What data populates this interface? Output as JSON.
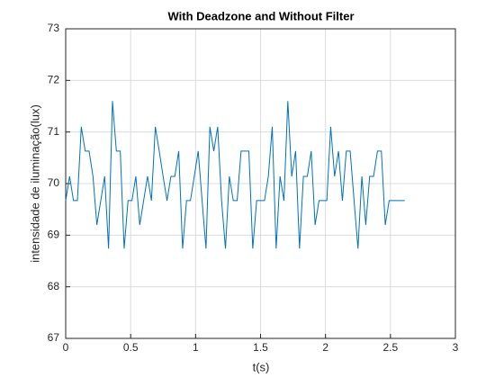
{
  "chart_data": {
    "type": "line",
    "title": "With Deadzone and Without Filter",
    "xlabel": "t(s)",
    "ylabel": "intensidade de iluminação(lux)",
    "x": [
      0,
      0.03,
      0.06,
      0.09,
      0.12,
      0.15,
      0.18,
      0.21,
      0.24,
      0.27,
      0.3,
      0.33,
      0.36,
      0.39,
      0.42,
      0.45,
      0.48,
      0.51,
      0.54,
      0.57,
      0.6,
      0.63,
      0.66,
      0.69,
      0.72,
      0.75,
      0.78,
      0.81,
      0.84,
      0.87,
      0.9,
      0.93,
      0.96,
      0.99,
      1.02,
      1.05,
      1.08,
      1.11,
      1.14,
      1.17,
      1.2,
      1.23,
      1.26,
      1.29,
      1.32,
      1.35,
      1.38,
      1.41,
      1.44,
      1.47,
      1.5,
      1.53,
      1.56,
      1.59,
      1.62,
      1.65,
      1.68,
      1.71,
      1.74,
      1.77,
      1.8,
      1.83,
      1.86,
      1.89,
      1.92,
      1.95,
      1.98,
      2.01,
      2.04,
      2.07,
      2.1,
      2.13,
      2.16,
      2.19,
      2.22,
      2.25,
      2.28,
      2.31,
      2.34,
      2.37,
      2.4,
      2.43,
      2.46,
      2.49,
      2.52,
      2.55,
      2.58,
      2.61
    ],
    "series": [
      {
        "color": "#0072bd",
        "values": [
          69.67,
          70.14,
          69.67,
          69.67,
          71.1,
          70.63,
          70.63,
          70.14,
          69.2,
          69.67,
          70.14,
          68.74,
          71.6,
          70.63,
          70.63,
          68.74,
          69.67,
          69.67,
          70.14,
          69.2,
          69.67,
          70.14,
          69.67,
          71.1,
          70.63,
          70.14,
          69.67,
          70.14,
          70.14,
          70.63,
          68.74,
          69.67,
          69.67,
          70.14,
          70.63,
          69.67,
          68.74,
          71.1,
          70.63,
          71.1,
          69.67,
          68.74,
          70.14,
          69.67,
          69.67,
          70.63,
          70.63,
          70.63,
          68.74,
          69.67,
          69.67,
          69.67,
          70.14,
          71.1,
          68.74,
          70.14,
          69.67,
          71.6,
          70.14,
          70.63,
          68.74,
          70.14,
          70.14,
          70.63,
          69.2,
          69.67,
          69.67,
          69.67,
          71.1,
          70.14,
          70.63,
          69.67,
          70.63,
          70.63,
          69.67,
          68.74,
          70.14,
          69.2,
          70.14,
          70.14,
          70.63,
          70.63,
          69.2,
          69.67,
          69.67,
          69.67,
          69.67,
          69.67
        ]
      }
    ],
    "xlim": [
      0,
      3
    ],
    "xticks": [
      0,
      0.5,
      1,
      1.5,
      2,
      2.5,
      3
    ],
    "ylim": [
      67,
      73
    ],
    "yticks": [
      67,
      68,
      69,
      70,
      71,
      72,
      73
    ],
    "grid": true
  }
}
